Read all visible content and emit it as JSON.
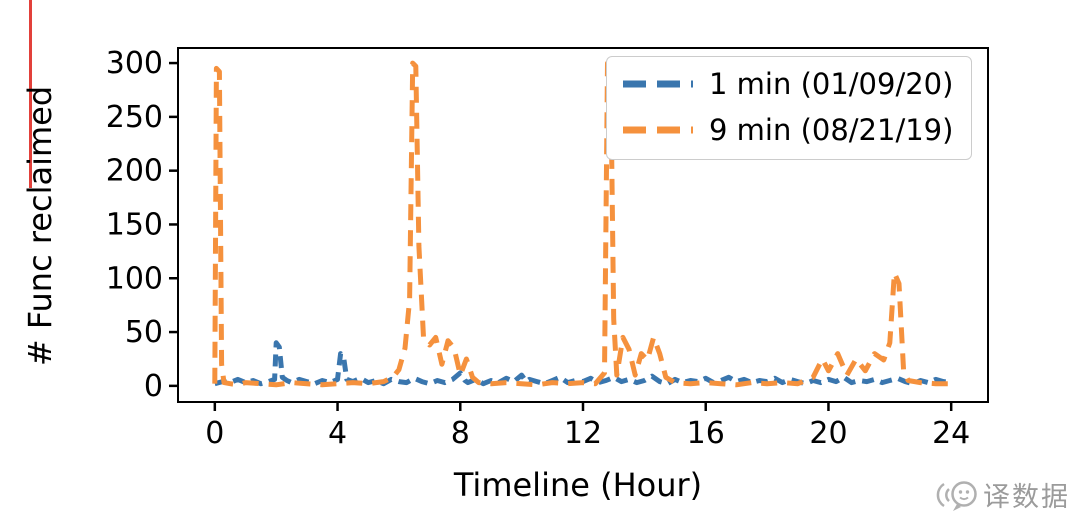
{
  "watermark": {
    "text": "译数据"
  },
  "chart_data": {
    "type": "line",
    "title": "",
    "xlabel": "Timeline (Hour)",
    "ylabel": "# Func reclaimed",
    "xlim": [
      -1.2,
      25.2
    ],
    "ylim": [
      -15,
      314
    ],
    "xticks": [
      0,
      4,
      8,
      12,
      16,
      20,
      24
    ],
    "yticks": [
      0,
      50,
      100,
      150,
      200,
      250,
      300
    ],
    "grid": false,
    "legend_position": "upper right",
    "series": [
      {
        "name": "1 min (01/09/20)",
        "color": "#3a76ae",
        "dash": "12 7",
        "width": 5,
        "points": [
          [
            0,
            2
          ],
          [
            0.25,
            4
          ],
          [
            0.5,
            3
          ],
          [
            0.75,
            6
          ],
          [
            1,
            3
          ],
          [
            1.25,
            5
          ],
          [
            1.5,
            2
          ],
          [
            1.75,
            4
          ],
          [
            1.95,
            6
          ],
          [
            2.0,
            40
          ],
          [
            2.1,
            36
          ],
          [
            2.2,
            8
          ],
          [
            2.35,
            5
          ],
          [
            2.5,
            3
          ],
          [
            2.75,
            6
          ],
          [
            3,
            4
          ],
          [
            3.25,
            2
          ],
          [
            3.5,
            5
          ],
          [
            3.75,
            3
          ],
          [
            4,
            6
          ],
          [
            4.1,
            30
          ],
          [
            4.2,
            26
          ],
          [
            4.3,
            6
          ],
          [
            4.5,
            4
          ],
          [
            4.75,
            7
          ],
          [
            5,
            3
          ],
          [
            5.25,
            5
          ],
          [
            5.5,
            2
          ],
          [
            5.75,
            6
          ],
          [
            6,
            4
          ],
          [
            6.25,
            3
          ],
          [
            6.5,
            7
          ],
          [
            6.75,
            4
          ],
          [
            7,
            2
          ],
          [
            7.25,
            5
          ],
          [
            7.5,
            3
          ],
          [
            7.75,
            6
          ],
          [
            8,
            12
          ],
          [
            8.15,
            5
          ],
          [
            8.25,
            3
          ],
          [
            8.5,
            6
          ],
          [
            8.75,
            2
          ],
          [
            9,
            5
          ],
          [
            9.25,
            3
          ],
          [
            9.5,
            7
          ],
          [
            9.75,
            4
          ],
          [
            10,
            10
          ],
          [
            10.15,
            4
          ],
          [
            10.25,
            6
          ],
          [
            10.5,
            4
          ],
          [
            10.75,
            2
          ],
          [
            11,
            5
          ],
          [
            11.25,
            8
          ],
          [
            11.5,
            3
          ],
          [
            11.75,
            5
          ],
          [
            12,
            4
          ],
          [
            12.25,
            7
          ],
          [
            12.5,
            3
          ],
          [
            12.75,
            5
          ],
          [
            13,
            8
          ],
          [
            13.25,
            4
          ],
          [
            13.5,
            6
          ],
          [
            13.75,
            3
          ],
          [
            14,
            5
          ],
          [
            14.25,
            9
          ],
          [
            14.5,
            4
          ],
          [
            14.75,
            2
          ],
          [
            15,
            6
          ],
          [
            15.25,
            3
          ],
          [
            15.5,
            5
          ],
          [
            15.75,
            4
          ],
          [
            16,
            7
          ],
          [
            16.25,
            3
          ],
          [
            16.5,
            5
          ],
          [
            16.75,
            8
          ],
          [
            17,
            4
          ],
          [
            17.25,
            6
          ],
          [
            17.5,
            3
          ],
          [
            17.75,
            5
          ],
          [
            18,
            4
          ],
          [
            18.25,
            7
          ],
          [
            18.5,
            3
          ],
          [
            18.75,
            6
          ],
          [
            19,
            4
          ],
          [
            19.25,
            2
          ],
          [
            19.5,
            5
          ],
          [
            19.75,
            3
          ],
          [
            20,
            6
          ],
          [
            20.25,
            4
          ],
          [
            20.5,
            8
          ],
          [
            20.75,
            3
          ],
          [
            21,
            5
          ],
          [
            21.25,
            4
          ],
          [
            21.5,
            6
          ],
          [
            21.75,
            3
          ],
          [
            22,
            5
          ],
          [
            22.25,
            7
          ],
          [
            22.5,
            4
          ],
          [
            22.75,
            2
          ],
          [
            23,
            5
          ],
          [
            23.25,
            3
          ],
          [
            23.5,
            6
          ],
          [
            23.75,
            4
          ],
          [
            24,
            3
          ]
        ]
      },
      {
        "name": "9 min (08/21/19)",
        "color": "#f5913d",
        "dash": "16 10",
        "width": 5,
        "points": [
          [
            0,
            2
          ],
          [
            0.05,
            295
          ],
          [
            0.15,
            292
          ],
          [
            0.22,
            20
          ],
          [
            0.3,
            3
          ],
          [
            0.5,
            2
          ],
          [
            0.75,
            1
          ],
          [
            1,
            3
          ],
          [
            1.5,
            2
          ],
          [
            2,
            1
          ],
          [
            2.5,
            3
          ],
          [
            3,
            2
          ],
          [
            3.5,
            1
          ],
          [
            4,
            2
          ],
          [
            4.5,
            3
          ],
          [
            5,
            2
          ],
          [
            5.5,
            4
          ],
          [
            5.8,
            8
          ],
          [
            6,
            15
          ],
          [
            6.2,
            35
          ],
          [
            6.35,
            80
          ],
          [
            6.45,
            300
          ],
          [
            6.55,
            297
          ],
          [
            6.65,
            130
          ],
          [
            6.8,
            45
          ],
          [
            7,
            38
          ],
          [
            7.2,
            45
          ],
          [
            7.4,
            20
          ],
          [
            7.6,
            42
          ],
          [
            7.8,
            35
          ],
          [
            8,
            10
          ],
          [
            8.2,
            25
          ],
          [
            8.4,
            8
          ],
          [
            8.6,
            3
          ],
          [
            9,
            2
          ],
          [
            9.5,
            3
          ],
          [
            10,
            2
          ],
          [
            10.5,
            1
          ],
          [
            11,
            3
          ],
          [
            11.5,
            2
          ],
          [
            12,
            3
          ],
          [
            12.4,
            2
          ],
          [
            12.7,
            12
          ],
          [
            12.8,
            300
          ],
          [
            12.9,
            296
          ],
          [
            13,
            62
          ],
          [
            13.1,
            10
          ],
          [
            13.3,
            45
          ],
          [
            13.5,
            34
          ],
          [
            13.7,
            10
          ],
          [
            13.9,
            30
          ],
          [
            14.1,
            24
          ],
          [
            14.3,
            45
          ],
          [
            14.5,
            30
          ],
          [
            14.7,
            8
          ],
          [
            15,
            3
          ],
          [
            15.5,
            2
          ],
          [
            16,
            3
          ],
          [
            16.5,
            2
          ],
          [
            17,
            1
          ],
          [
            17.5,
            3
          ],
          [
            18,
            2
          ],
          [
            18.5,
            3
          ],
          [
            19,
            2
          ],
          [
            19.5,
            8
          ],
          [
            19.8,
            25
          ],
          [
            20,
            14
          ],
          [
            20.3,
            30
          ],
          [
            20.6,
            10
          ],
          [
            20.9,
            25
          ],
          [
            21.2,
            14
          ],
          [
            21.5,
            30
          ],
          [
            21.8,
            24
          ],
          [
            22,
            40
          ],
          [
            22.15,
            105
          ],
          [
            22.3,
            95
          ],
          [
            22.45,
            14
          ],
          [
            22.6,
            5
          ],
          [
            23,
            3
          ],
          [
            23.5,
            2
          ],
          [
            24,
            2
          ]
        ]
      }
    ]
  }
}
